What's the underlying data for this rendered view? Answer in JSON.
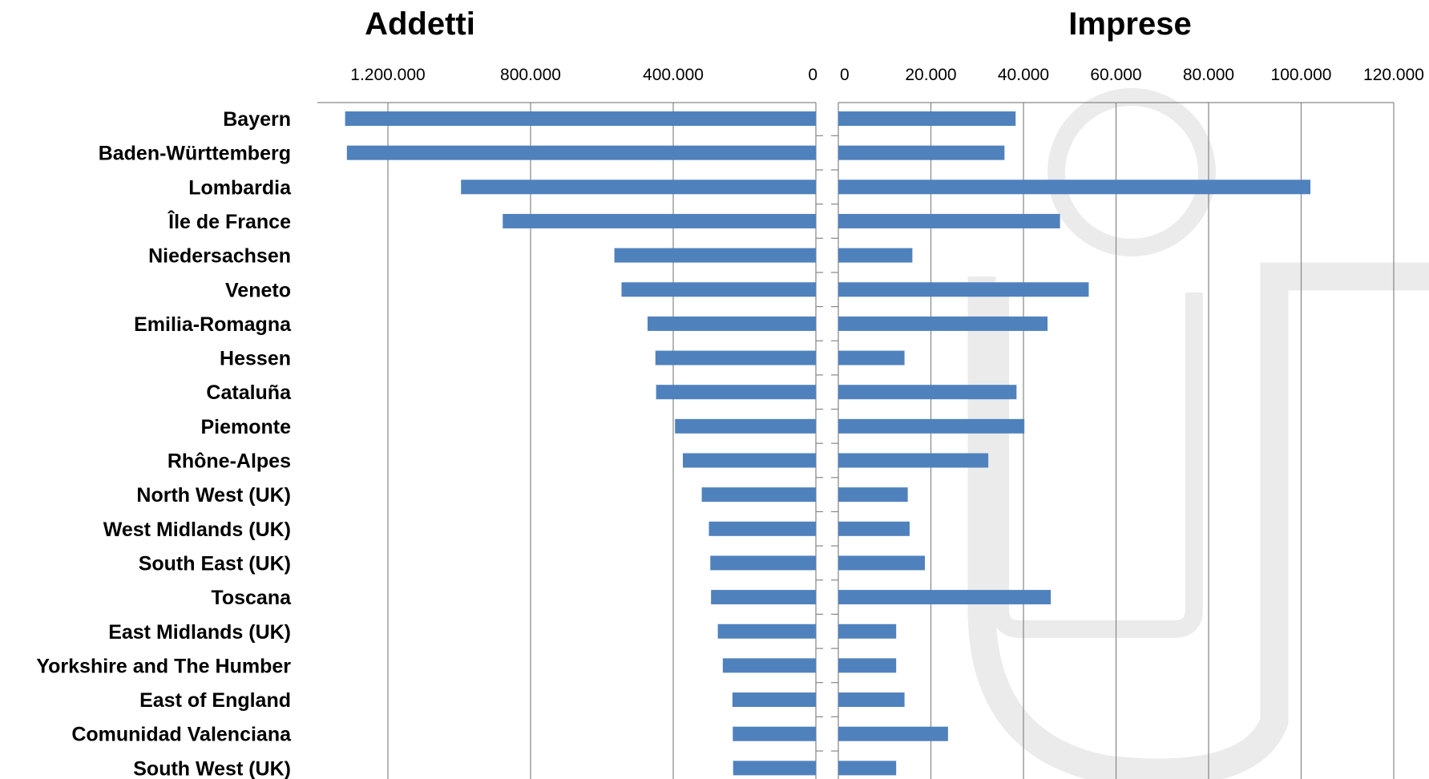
{
  "colors": {
    "bar": "#4f81bd",
    "grid": "#868686",
    "text": "#000000",
    "watermark": "#ebebeb"
  },
  "watermark": {
    "icon": "university-logo-watermark-icon"
  },
  "chart_data": [
    {
      "type": "bar",
      "orientation": "horizontal",
      "direction": "reversed",
      "title": "Addetti",
      "xlabel": "",
      "ylabel": "",
      "xlim": [
        0,
        1400000
      ],
      "tick_values": [
        1200000,
        800000,
        400000,
        0
      ],
      "tick_labels": [
        "1.200.000",
        "800.000",
        "400.000",
        "0"
      ],
      "grid": true,
      "categories": [
        "Bayern",
        "Baden-Württemberg",
        "Lombardia",
        "Île de France",
        "Niedersachsen",
        "Veneto",
        "Emilia-Romagna",
        "Hessen",
        "Cataluña",
        "Piemonte",
        "Rhône-Alpes",
        "North West (UK)",
        "West Midlands (UK)",
        "South East (UK)",
        "Toscana",
        "East Midlands (UK)",
        "Yorkshire and The Humber",
        "East of England",
        "Comunidad Valenciana",
        "South West (UK)"
      ],
      "values": [
        1320000,
        1315000,
        995000,
        878000,
        565000,
        545000,
        472000,
        450000,
        448000,
        395000,
        373000,
        320000,
        300000,
        296000,
        294000,
        275000,
        261000,
        234000,
        233000,
        232000
      ]
    },
    {
      "type": "bar",
      "orientation": "horizontal",
      "title": "Imprese",
      "xlabel": "",
      "ylabel": "",
      "xlim": [
        0,
        120000
      ],
      "tick_values": [
        0,
        20000,
        40000,
        60000,
        80000,
        100000,
        120000
      ],
      "tick_labels": [
        "0",
        "20.000",
        "40.000",
        "60.000",
        "80.000",
        "100.000",
        "120.000"
      ],
      "grid": true,
      "categories": [
        "Bayern",
        "Baden-Württemberg",
        "Lombardia",
        "Île de France",
        "Niedersachsen",
        "Veneto",
        "Emilia-Romagna",
        "Hessen",
        "Cataluña",
        "Piemonte",
        "Rhône-Alpes",
        "North West (UK)",
        "West Midlands (UK)",
        "South East (UK)",
        "Toscana",
        "East Midlands (UK)",
        "Yorkshire and The Humber",
        "East of England",
        "Comunidad Valenciana",
        "South West (UK)"
      ],
      "values": [
        38300,
        35900,
        102000,
        47900,
        16000,
        54100,
        45200,
        14300,
        38500,
        40200,
        32400,
        15000,
        15400,
        18700,
        45900,
        12500,
        12500,
        14300,
        23700,
        12500
      ]
    }
  ]
}
